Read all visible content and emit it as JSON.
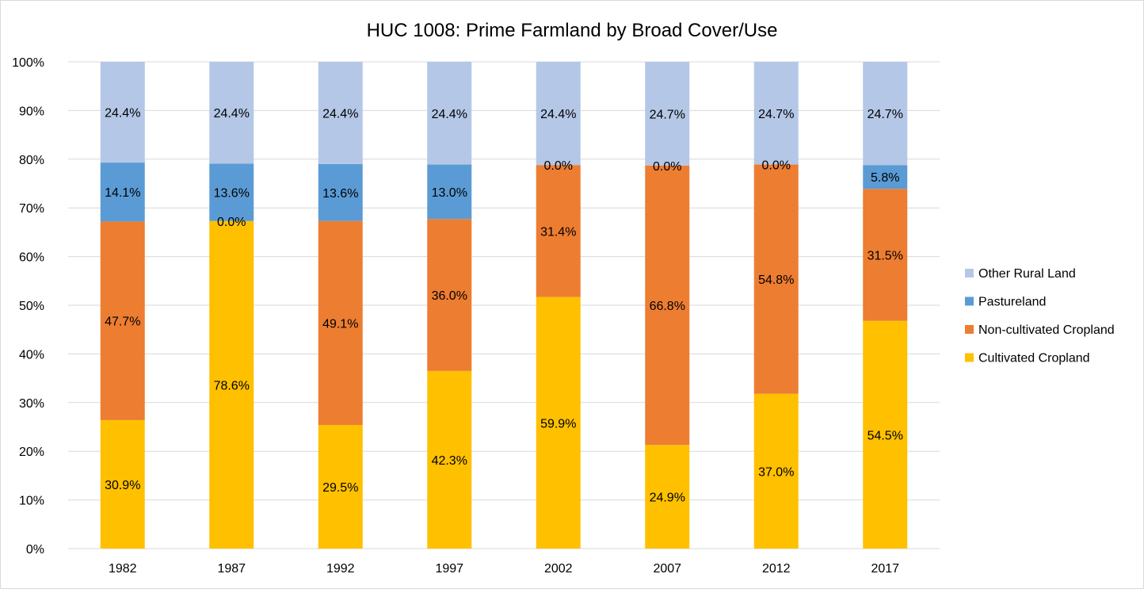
{
  "chart_data": {
    "type": "bar",
    "stacking": "stacked",
    "title": "HUC 1008:  Prime Farmland by Broad Cover/Use",
    "xlabel": "",
    "ylabel": "",
    "categories": [
      "1982",
      "1987",
      "1992",
      "1997",
      "2002",
      "2007",
      "2012",
      "2017"
    ],
    "y_ticks": [
      "0%",
      "10%",
      "20%",
      "30%",
      "40%",
      "50%",
      "60%",
      "70%",
      "80%",
      "90%",
      "100%"
    ],
    "ylim": [
      0,
      100
    ],
    "grid": true,
    "legend_position": "right",
    "series": [
      {
        "name": "Cultivated Cropland",
        "color": "#FFC000",
        "heights": [
          26.4,
          67.3,
          25.4,
          36.5,
          51.7,
          21.3,
          31.8,
          46.8
        ],
        "labels": [
          "30.9%",
          "78.6%",
          "29.5%",
          "42.3%",
          "59.9%",
          "24.9%",
          "37.0%",
          "54.5%"
        ]
      },
      {
        "name": "Non-cultivated Cropland",
        "color": "#ED7D31",
        "heights": [
          40.8,
          0.0,
          41.9,
          31.2,
          27.1,
          57.4,
          47.1,
          27.1
        ],
        "labels": [
          "47.7%",
          "0.0%",
          "49.1%",
          "36.0%",
          "31.4%",
          "66.8%",
          "54.8%",
          "31.5%"
        ]
      },
      {
        "name": "Pastureland",
        "color": "#5B9BD5",
        "heights": [
          12.1,
          11.8,
          11.7,
          11.2,
          0.0,
          0.0,
          0.0,
          4.9
        ],
        "labels": [
          "14.1%",
          "13.6%",
          "13.6%",
          "13.0%",
          "0.0%",
          "0.0%",
          "0.0%",
          "5.8%"
        ]
      },
      {
        "name": "Other Rural Land",
        "color": "#B4C7E7",
        "heights": [
          20.7,
          20.9,
          21.0,
          21.1,
          21.2,
          21.3,
          21.1,
          21.2
        ],
        "labels": [
          "24.4%",
          "24.4%",
          "24.4%",
          "24.4%",
          "24.4%",
          "24.7%",
          "24.7%",
          "24.7%"
        ]
      }
    ],
    "legend_order": [
      "Other Rural Land",
      "Pastureland",
      "Non-cultivated Cropland",
      "Cultivated Cropland"
    ],
    "colors": {
      "grid": "#D9D9D9",
      "text": "#000000",
      "tick_text": "#000000"
    }
  }
}
